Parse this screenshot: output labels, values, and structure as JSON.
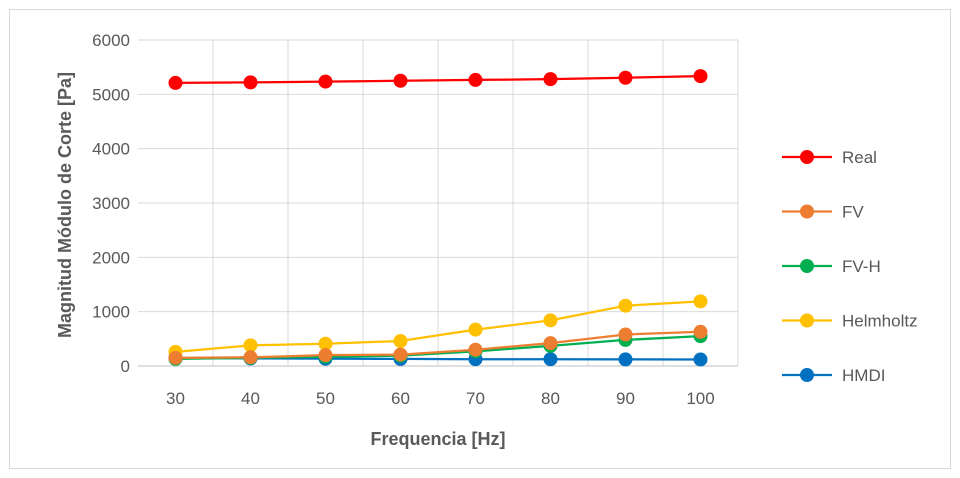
{
  "chart_data": {
    "type": "line",
    "title": "",
    "xlabel": "Frequencia [Hz]",
    "ylabel": "Magnitud Módulo de Corte [Pa]",
    "x": [
      30,
      40,
      50,
      60,
      70,
      80,
      90,
      100
    ],
    "ylim": [
      0,
      6000
    ],
    "yticks": [
      0,
      1000,
      2000,
      3000,
      4000,
      5000,
      6000
    ],
    "grid": true,
    "legend_position": "right",
    "series": [
      {
        "name": "Real",
        "color": "#ff0000",
        "values": [
          5210,
          5220,
          5235,
          5250,
          5265,
          5280,
          5305,
          5335
        ]
      },
      {
        "name": "FV",
        "color": "#ed7d31",
        "values": [
          150,
          160,
          200,
          210,
          300,
          420,
          580,
          630
        ]
      },
      {
        "name": "FV-H",
        "color": "#00b050",
        "values": [
          130,
          150,
          170,
          190,
          270,
          370,
          480,
          550
        ]
      },
      {
        "name": "Helmholtz",
        "color": "#ffc000",
        "values": [
          260,
          380,
          410,
          460,
          670,
          840,
          1110,
          1190
        ]
      },
      {
        "name": "HMDI",
        "color": "#0070c0",
        "values": [
          150,
          140,
          135,
          130,
          125,
          125,
          122,
          120
        ]
      }
    ]
  }
}
